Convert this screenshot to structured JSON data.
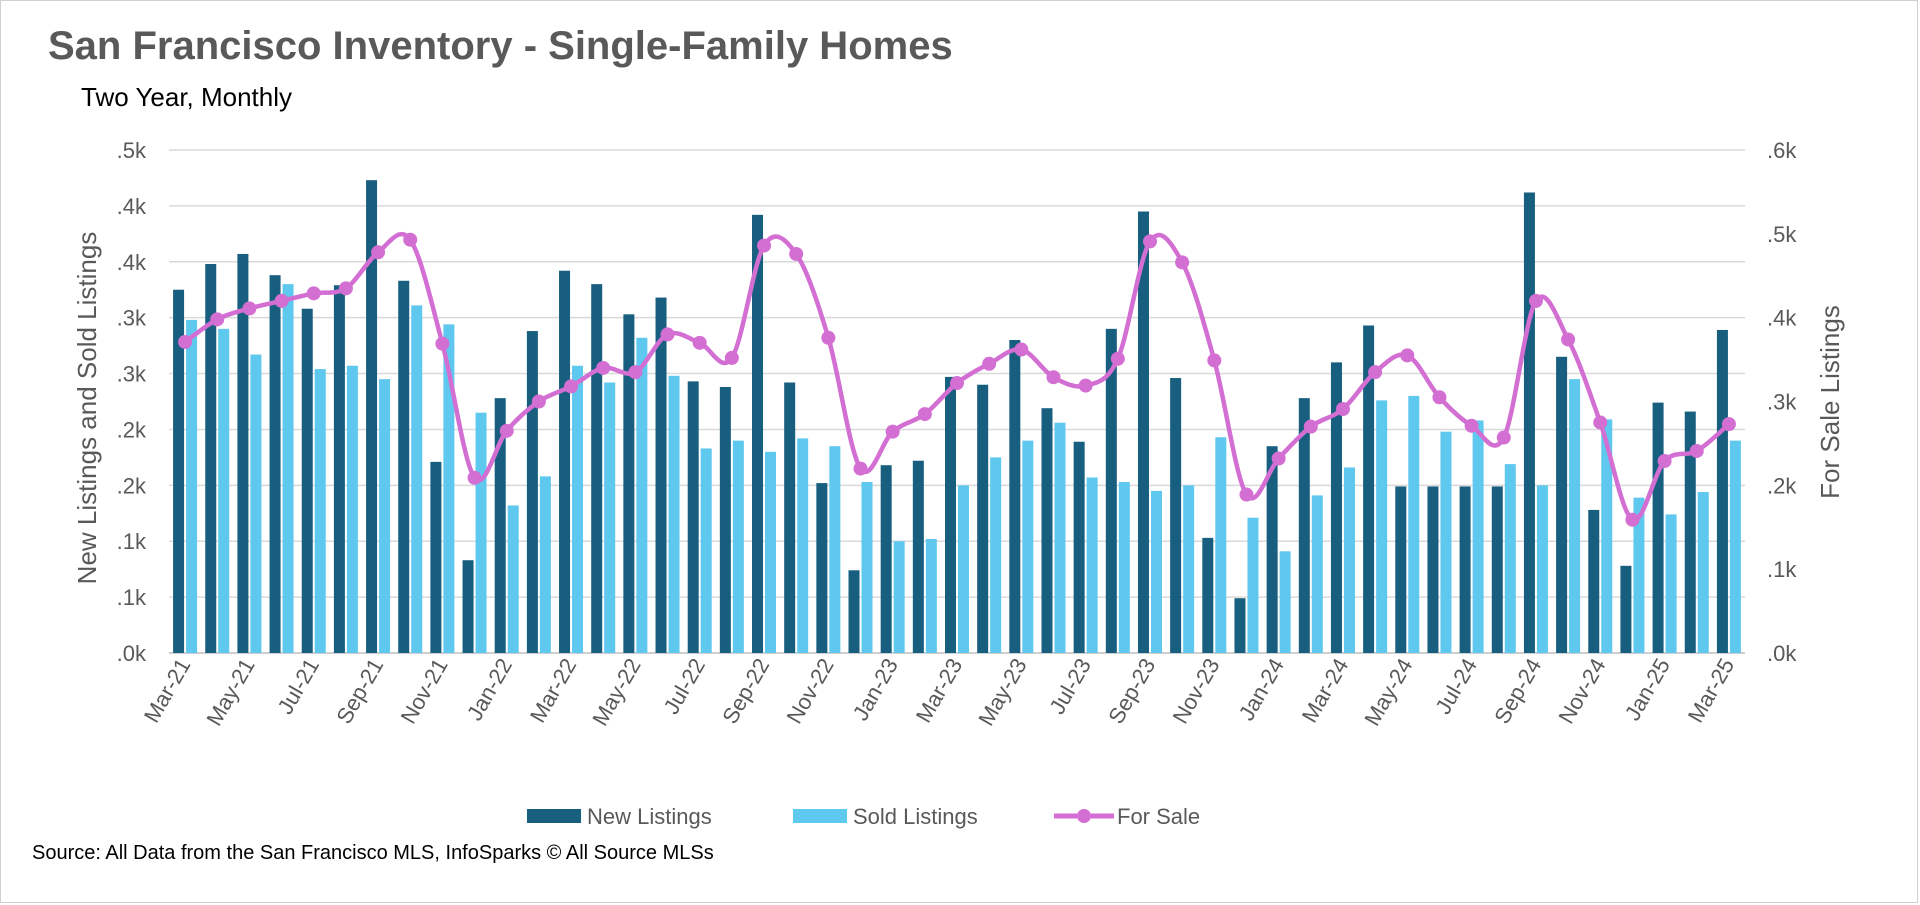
{
  "chart_data": {
    "type": "bar",
    "title": "San Francisco Inventory - Single-Family Homes",
    "subtitle": "Two Year, Monthly",
    "source": "Source: All Data from the San Francisco MLS, InfoSparks © All Source MLSs",
    "ylabel_left": "New Listings and Sold Listings",
    "ylabel_right": "For Sale Listings",
    "left_tick_labels": [
      ".0k",
      ".1k",
      ".1k",
      ".2k",
      ".2k",
      ".3k",
      ".3k",
      ".4k",
      ".4k",
      ".5k"
    ],
    "right_tick_labels": [
      ".0k",
      ".1k",
      ".2k",
      ".3k",
      ".4k",
      ".5k",
      ".6k"
    ],
    "ylim_left": [
      0,
      450
    ],
    "ylim_right": [
      0,
      600
    ],
    "grid": true,
    "legend_position": "bottom",
    "months": [
      "Mar-21",
      "Apr-21",
      "May-21",
      "Jun-21",
      "Jul-21",
      "Aug-21",
      "Sep-21",
      "Oct-21",
      "Nov-21",
      "Dec-21",
      "Jan-22",
      "Feb-22",
      "Mar-22",
      "Apr-22",
      "May-22",
      "Jun-22",
      "Jul-22",
      "Aug-22",
      "Sep-22",
      "Oct-22",
      "Nov-22",
      "Dec-22",
      "Jan-23",
      "Feb-23",
      "Mar-23",
      "Apr-23",
      "May-23",
      "Jun-23",
      "Jul-23",
      "Aug-23",
      "Sep-23",
      "Oct-23",
      "Nov-23",
      "Dec-23",
      "Jan-24",
      "Feb-24",
      "Mar-24",
      "Apr-24",
      "May-24",
      "Jun-24",
      "Jul-24",
      "Aug-24",
      "Sep-24",
      "Oct-24",
      "Nov-24",
      "Dec-24",
      "Jan-25",
      "Feb-25",
      "Mar-25"
    ],
    "x_tick_labels": [
      "Mar-21",
      "May-21",
      "Jul-21",
      "Sep-21",
      "Nov-21",
      "Jan-22",
      "Mar-22",
      "May-22",
      "Jul-22",
      "Sep-22",
      "Nov-22",
      "Jan-23",
      "Mar-23",
      "May-23",
      "Jul-23",
      "Sep-23",
      "Nov-23",
      "Jan-24",
      "Mar-24",
      "May-24",
      "Jul-24",
      "Sep-24",
      "Nov-24",
      "Jan-25",
      "Mar-25"
    ],
    "series": [
      {
        "name": "New Listings",
        "axis": "left",
        "kind": "bar",
        "color": "#175e7f",
        "values": [
          325,
          348,
          357,
          338,
          308,
          329,
          423,
          333,
          171,
          83,
          228,
          288,
          342,
          330,
          303,
          318,
          243,
          238,
          392,
          242,
          152,
          74,
          168,
          172,
          247,
          240,
          280,
          219,
          189,
          290,
          395,
          246,
          103,
          49,
          185,
          228,
          260,
          293,
          149,
          149,
          149,
          149,
          412,
          265,
          128,
          78,
          224,
          216,
          289
        ]
      },
      {
        "name": "Sold Listings",
        "axis": "left",
        "kind": "bar",
        "color": "#5fc8ef",
        "values": [
          298,
          290,
          267,
          330,
          254,
          257,
          245,
          311,
          294,
          215,
          132,
          158,
          257,
          242,
          282,
          248,
          183,
          190,
          180,
          192,
          185,
          153,
          100,
          102,
          150,
          175,
          190,
          206,
          157,
          153,
          145,
          150,
          193,
          121,
          91,
          141,
          166,
          226,
          230,
          198,
          208,
          169,
          150,
          245,
          209,
          139,
          124,
          144,
          190
        ]
      },
      {
        "name": "For Sale",
        "axis": "right",
        "kind": "line",
        "color": "#d36ed3",
        "values": [
          371,
          398,
          411,
          420,
          429,
          435,
          478,
          493,
          369,
          209,
          265,
          300,
          318,
          340,
          335,
          380,
          370,
          352,
          486,
          476,
          376,
          220,
          264,
          285,
          322,
          345,
          362,
          329,
          319,
          351,
          491,
          466,
          349,
          189,
          232,
          270,
          291,
          335,
          355,
          305,
          271,
          257,
          420,
          374,
          275,
          159,
          229,
          241,
          273
        ]
      }
    ]
  }
}
